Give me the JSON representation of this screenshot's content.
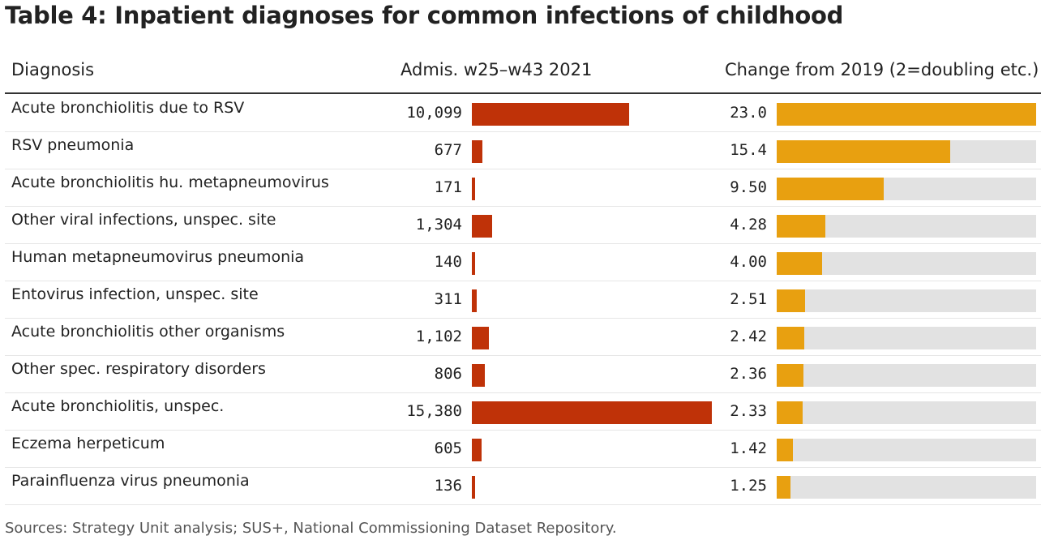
{
  "title": "Table 4: Inpatient diagnoses for common infections of childhood",
  "headers": {
    "diagnosis": "Diagnosis",
    "admissions": "Admis. w25–w43 2021",
    "change": "Change from 2019 (2=doubling etc.)"
  },
  "footer": "Sources: Strategy Unit analysis; SUS+, National Commissioning Dataset Repository.",
  "colors": {
    "admissions_bar": "#bf3208",
    "change_bar": "#e8a010",
    "track": "#e2e2e2"
  },
  "chart_data": {
    "type": "table",
    "title": "Table 4: Inpatient diagnoses for common infections of childhood",
    "columns": [
      "Diagnosis",
      "Admis. w25–w43 2021",
      "Change from 2019 (2=doubling etc.)"
    ],
    "admissions_max": 15380,
    "change_max": 23.0,
    "rows": [
      {
        "diagnosis": "Acute bronchiolitis due to RSV",
        "admissions": 10099,
        "admissions_label": "10,099",
        "change": 23.0,
        "change_label": "23.0"
      },
      {
        "diagnosis": "RSV pneumonia",
        "admissions": 677,
        "admissions_label": "677",
        "change": 15.4,
        "change_label": "15.4"
      },
      {
        "diagnosis": "Acute bronchiolitis hu. metapneumovirus",
        "admissions": 171,
        "admissions_label": "171",
        "change": 9.5,
        "change_label": "9.50"
      },
      {
        "diagnosis": "Other viral infections, unspec. site",
        "admissions": 1304,
        "admissions_label": "1,304",
        "change": 4.28,
        "change_label": "4.28"
      },
      {
        "diagnosis": "Human metapneumovirus pneumonia",
        "admissions": 140,
        "admissions_label": "140",
        "change": 4.0,
        "change_label": "4.00"
      },
      {
        "diagnosis": "Entovirus infection, unspec. site",
        "admissions": 311,
        "admissions_label": "311",
        "change": 2.51,
        "change_label": "2.51"
      },
      {
        "diagnosis": "Acute bronchiolitis other organisms",
        "admissions": 1102,
        "admissions_label": "1,102",
        "change": 2.42,
        "change_label": "2.42"
      },
      {
        "diagnosis": "Other spec. respiratory disorders",
        "admissions": 806,
        "admissions_label": "806",
        "change": 2.36,
        "change_label": "2.36"
      },
      {
        "diagnosis": "Acute bronchiolitis, unspec.",
        "admissions": 15380,
        "admissions_label": "15,380",
        "change": 2.33,
        "change_label": "2.33"
      },
      {
        "diagnosis": "Eczema herpeticum",
        "admissions": 605,
        "admissions_label": "605",
        "change": 1.42,
        "change_label": "1.42"
      },
      {
        "diagnosis": "Parainfluenza virus pneumonia",
        "admissions": 136,
        "admissions_label": "136",
        "change": 1.25,
        "change_label": "1.25"
      }
    ]
  }
}
